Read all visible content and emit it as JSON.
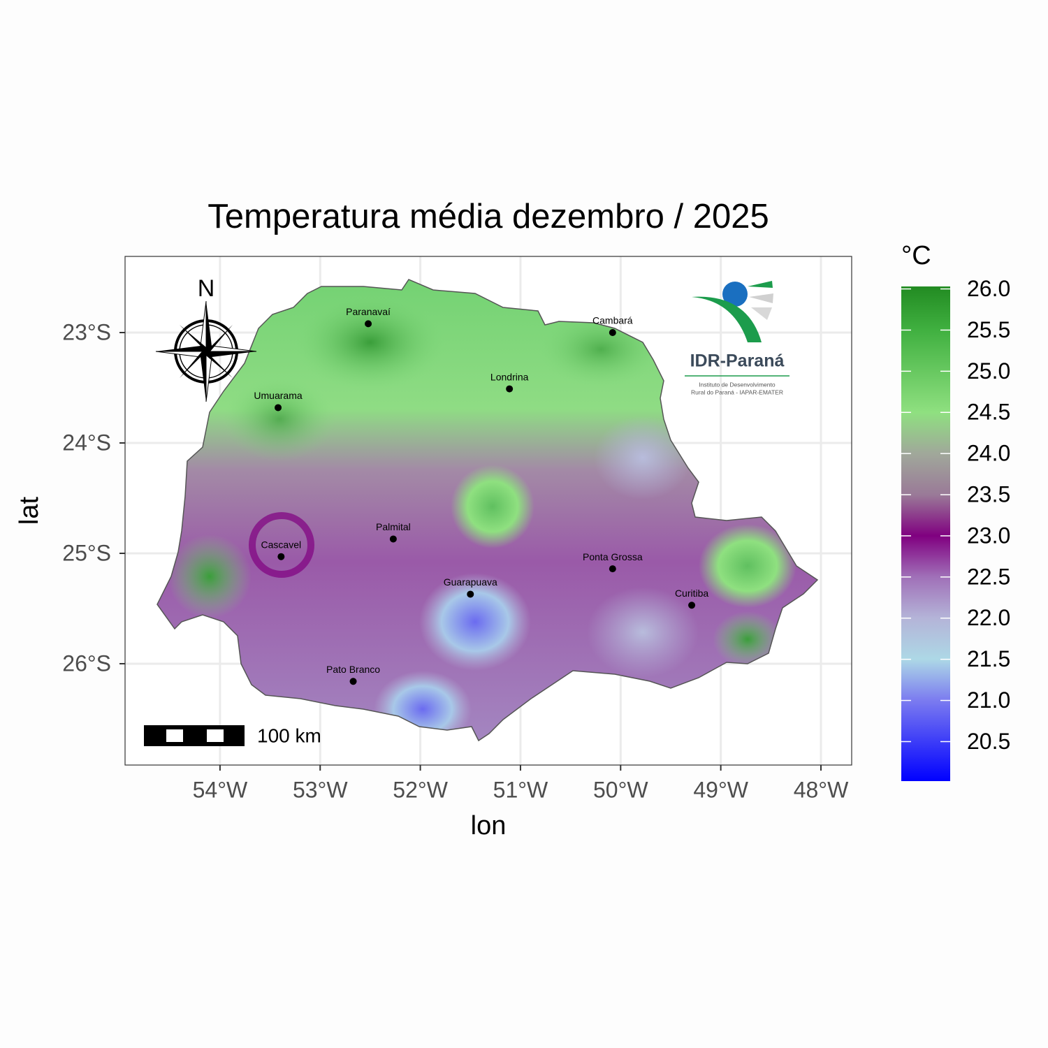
{
  "chart_data": {
    "type": "map",
    "title": "Temperatura média dezembro / 2025",
    "x_label": "lon",
    "y_label": "lat",
    "xlim": [
      -54.948,
      -47.693
    ],
    "ylim": [
      -26.918,
      -22.31
    ],
    "xticks": [
      {
        "value": -54,
        "label": "54°W"
      },
      {
        "value": -53,
        "label": "53°W"
      },
      {
        "value": -52,
        "label": "52°W"
      },
      {
        "value": -51,
        "label": "51°W"
      },
      {
        "value": -50,
        "label": "50°W"
      },
      {
        "value": -49,
        "label": "49°W"
      },
      {
        "value": -48,
        "label": "48°W"
      }
    ],
    "yticks": [
      {
        "value": -23,
        "label": "23°S"
      },
      {
        "value": -24,
        "label": "24°S"
      },
      {
        "value": -25,
        "label": "25°S"
      },
      {
        "value": -26,
        "label": "26°S"
      }
    ],
    "grid": true,
    "cities": {
      "names": [
        "Paranavaí",
        "Cambará",
        "Londrina",
        "Umuarama",
        "Palmital",
        "Cascavel",
        "Ponta Grossa",
        "Guarapuava",
        "Curitiba",
        "Pato Branco"
      ],
      "lon": [
        -52.52,
        -50.08,
        -51.11,
        -53.42,
        -52.27,
        -53.39,
        -50.08,
        -51.5,
        -49.29,
        -52.67
      ],
      "lat": [
        -22.92,
        -23.0,
        -23.51,
        -23.68,
        -24.87,
        -25.03,
        -25.14,
        -25.37,
        -25.47,
        -26.16
      ]
    },
    "colorbar": {
      "title": "°C",
      "lim": [
        20.02,
        26.03
      ],
      "ticks": [
        20.5,
        {
          "value": 21,
          "label": "21.0"
        },
        21.5,
        {
          "value": 22,
          "label": "22.0"
        },
        22.5,
        {
          "value": 23,
          "label": "23.0"
        },
        23.5,
        {
          "value": 24,
          "label": "24.0"
        },
        24.5,
        {
          "value": 25,
          "label": "25.0"
        },
        25.5,
        {
          "value": 26,
          "label": "26.0"
        }
      ],
      "color_stops": [
        {
          "value": 20.02,
          "color": "#0000ff"
        },
        {
          "value": 21,
          "color": "#7b7bf0"
        },
        {
          "value": 21.5,
          "color": "#add8e6"
        },
        {
          "value": 22,
          "color": "#b4b4d8"
        },
        {
          "value": 22.5,
          "color": "#a070b8"
        },
        {
          "value": 23,
          "color": "#800080"
        },
        {
          "value": 23.5,
          "color": "#9a7a98"
        },
        {
          "value": 24,
          "color": "#a0a89a"
        },
        {
          "value": 24.5,
          "color": "#8fe080"
        },
        {
          "value": 25.5,
          "color": "#40b040"
        },
        {
          "value": 26.03,
          "color": "#228b22"
        }
      ]
    }
  },
  "north_label": "N",
  "scale_bar_label": "100 km",
  "logo": {
    "name": "IDR-Paraná",
    "subtitle_1": "Instituto de Desenvolvimento",
    "subtitle_2": "Rural do Paraná - IAPAR-EMATER"
  }
}
